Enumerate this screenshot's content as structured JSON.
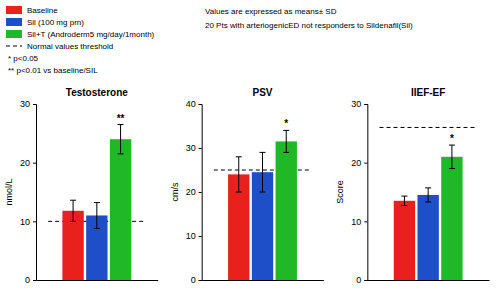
{
  "chart_data": [
    {
      "type": "bar",
      "title": "Testosterone",
      "y_label": "nmol/L",
      "categories": [
        null
      ],
      "series": [
        {
          "name": "Baseline",
          "color": "#e8211d",
          "values": [
            11.8
          ],
          "errors": [
            1.8
          ]
        },
        {
          "name": "Sil (100 mg prn)",
          "color": "#1e4ec8",
          "values": [
            11.0
          ],
          "errors": [
            2.2
          ]
        },
        {
          "name": "Sil+T (Androderm5 mg/day/1month)",
          "color": "#21b827",
          "values": [
            24.0
          ],
          "errors": [
            2.5
          ]
        },
        {
          "name": "Normal values threshold",
          "type": "line",
          "line_style": "dashed",
          "color": "#000000",
          "values": [
            10.0
          ]
        }
      ],
      "ylim": [
        0,
        30
      ],
      "yticks": [
        0,
        10,
        20,
        30
      ],
      "annotation": {
        "text": "**",
        "series": 2
      },
      "tick_labels": "y",
      "legend": "upper left",
      "legend_notes": [
        "* p<0.05",
        "** p<0.01 vs baseline/SIL"
      ],
      "notes": [
        "Values are expressed as means± SD",
        "20 Pts with arteriogenicED not responders to Sildenafil(Sil)"
      ]
    },
    {
      "type": "bar",
      "title": "PSV",
      "y_label": "cm/s",
      "categories": [
        null
      ],
      "series": [
        {
          "color": "#e8211d",
          "values": [
            24.0
          ],
          "errors": [
            4.0
          ]
        },
        {
          "color": "#1e4ec8",
          "values": [
            24.5
          ],
          "errors": [
            4.5
          ]
        },
        {
          "color": "#21b827",
          "values": [
            31.5
          ],
          "errors": [
            2.5
          ]
        },
        {
          "type": "line",
          "line_style": "dashed",
          "color": "#000000",
          "values": [
            25.0
          ]
        }
      ],
      "ylim": [
        0,
        40
      ],
      "yticks": [
        0,
        10,
        20,
        30,
        40
      ],
      "annotation": {
        "text": "*",
        "series": 2
      },
      "tick_labels": "y"
    },
    {
      "type": "bar",
      "title": "IIEF-EF",
      "y_label": "Score",
      "categories": [
        null
      ],
      "series": [
        {
          "color": "#e8211d",
          "values": [
            13.5
          ],
          "errors": [
            0.8
          ]
        },
        {
          "color": "#1e4ec8",
          "values": [
            14.5
          ],
          "errors": [
            1.2
          ]
        },
        {
          "color": "#21b827",
          "values": [
            21.0
          ],
          "errors": [
            2.0
          ]
        },
        {
          "type": "line",
          "line_style": "dashed",
          "color": "#000000",
          "values": [
            26.0
          ]
        }
      ],
      "ylim": [
        0,
        30
      ],
      "yticks": [
        0,
        10,
        20,
        30
      ],
      "annotation": {
        "text": "*",
        "series": 2
      },
      "tick_labels": "y"
    }
  ]
}
